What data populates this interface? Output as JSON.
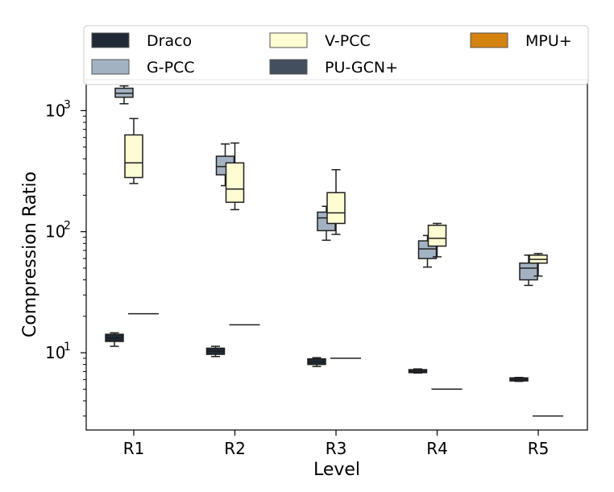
{
  "chart_data": {
    "type": "box",
    "title": "",
    "xlabel": "Level",
    "ylabel": "Compression Ratio",
    "yscale": "log",
    "ylim": [
      2.3,
      1800
    ],
    "categories": [
      "R1",
      "R2",
      "R3",
      "R4",
      "R5"
    ],
    "y_ticks": [
      {
        "value": 10,
        "base": "10",
        "exp": "1"
      },
      {
        "value": 100,
        "base": "10",
        "exp": "2"
      },
      {
        "value": 1000,
        "base": "10",
        "exp": "3"
      }
    ],
    "legend": {
      "placement": "top",
      "ncol": 3,
      "entries": [
        "Draco",
        "G-PCC",
        "V-PCC",
        "PU-GCN+",
        "MPU+"
      ]
    },
    "series": [
      {
        "name": "Draco",
        "color": "#1f2a36",
        "offset": -0.8,
        "stats": [
          {
            "whislo": 11.3,
            "q1": 12.4,
            "med": 13.2,
            "q3": 14.2,
            "whishi": 14.6
          },
          {
            "whislo": 9.3,
            "q1": 9.7,
            "med": 10.3,
            "q3": 10.9,
            "whishi": 11.3
          },
          {
            "whislo": 7.7,
            "q1": 8.0,
            "med": 8.4,
            "q3": 8.9,
            "whishi": 9.1
          },
          {
            "whislo": 6.8,
            "q1": 6.85,
            "med": 7.0,
            "q3": 7.25,
            "whishi": 7.35
          },
          {
            "whislo": 5.8,
            "q1": 5.85,
            "med": 6.0,
            "q3": 6.2,
            "whishi": 6.25
          }
        ]
      },
      {
        "name": "G-PCC",
        "color": "#a3b2c2",
        "offset": -0.4,
        "stats": [
          {
            "whislo": 1140,
            "q1": 1290,
            "med": 1390,
            "q3": 1530,
            "whishi": 1600
          },
          {
            "whislo": 240,
            "q1": 295,
            "med": 345,
            "q3": 420,
            "whishi": 530
          },
          {
            "whislo": 85,
            "q1": 102,
            "med": 130,
            "q3": 145,
            "whishi": 162
          },
          {
            "whislo": 51,
            "q1": 60,
            "med": 72,
            "q3": 84,
            "whishi": 93
          },
          {
            "whislo": 36,
            "q1": 40,
            "med": 50,
            "q3": 55,
            "whishi": 64
          }
        ]
      },
      {
        "name": "V-PCC",
        "color": "#fefcd2",
        "offset": 0,
        "stats": [
          {
            "whislo": 250,
            "q1": 280,
            "med": 370,
            "q3": 630,
            "whishi": 860
          },
          {
            "whislo": 152,
            "q1": 175,
            "med": 225,
            "q3": 370,
            "whishi": 540
          },
          {
            "whislo": 95,
            "q1": 117,
            "med": 143,
            "q3": 210,
            "whishi": 325
          },
          {
            "whislo": 62,
            "q1": 76,
            "med": 88,
            "q3": 113,
            "whishi": 117
          },
          {
            "whislo": 43,
            "q1": 55,
            "med": 59,
            "q3": 64,
            "whishi": 66
          }
        ]
      },
      {
        "name": "PU-GCN+",
        "color": "#434f5e",
        "offset": 0.4,
        "stats": [
          {
            "value": 21
          },
          {
            "value": 17
          },
          {
            "value": 9
          },
          {
            "value": 5
          },
          {
            "value": 3
          }
        ]
      },
      {
        "name": "MPU+",
        "color": "#d5830f",
        "offset": 0.8,
        "stats": []
      }
    ]
  }
}
